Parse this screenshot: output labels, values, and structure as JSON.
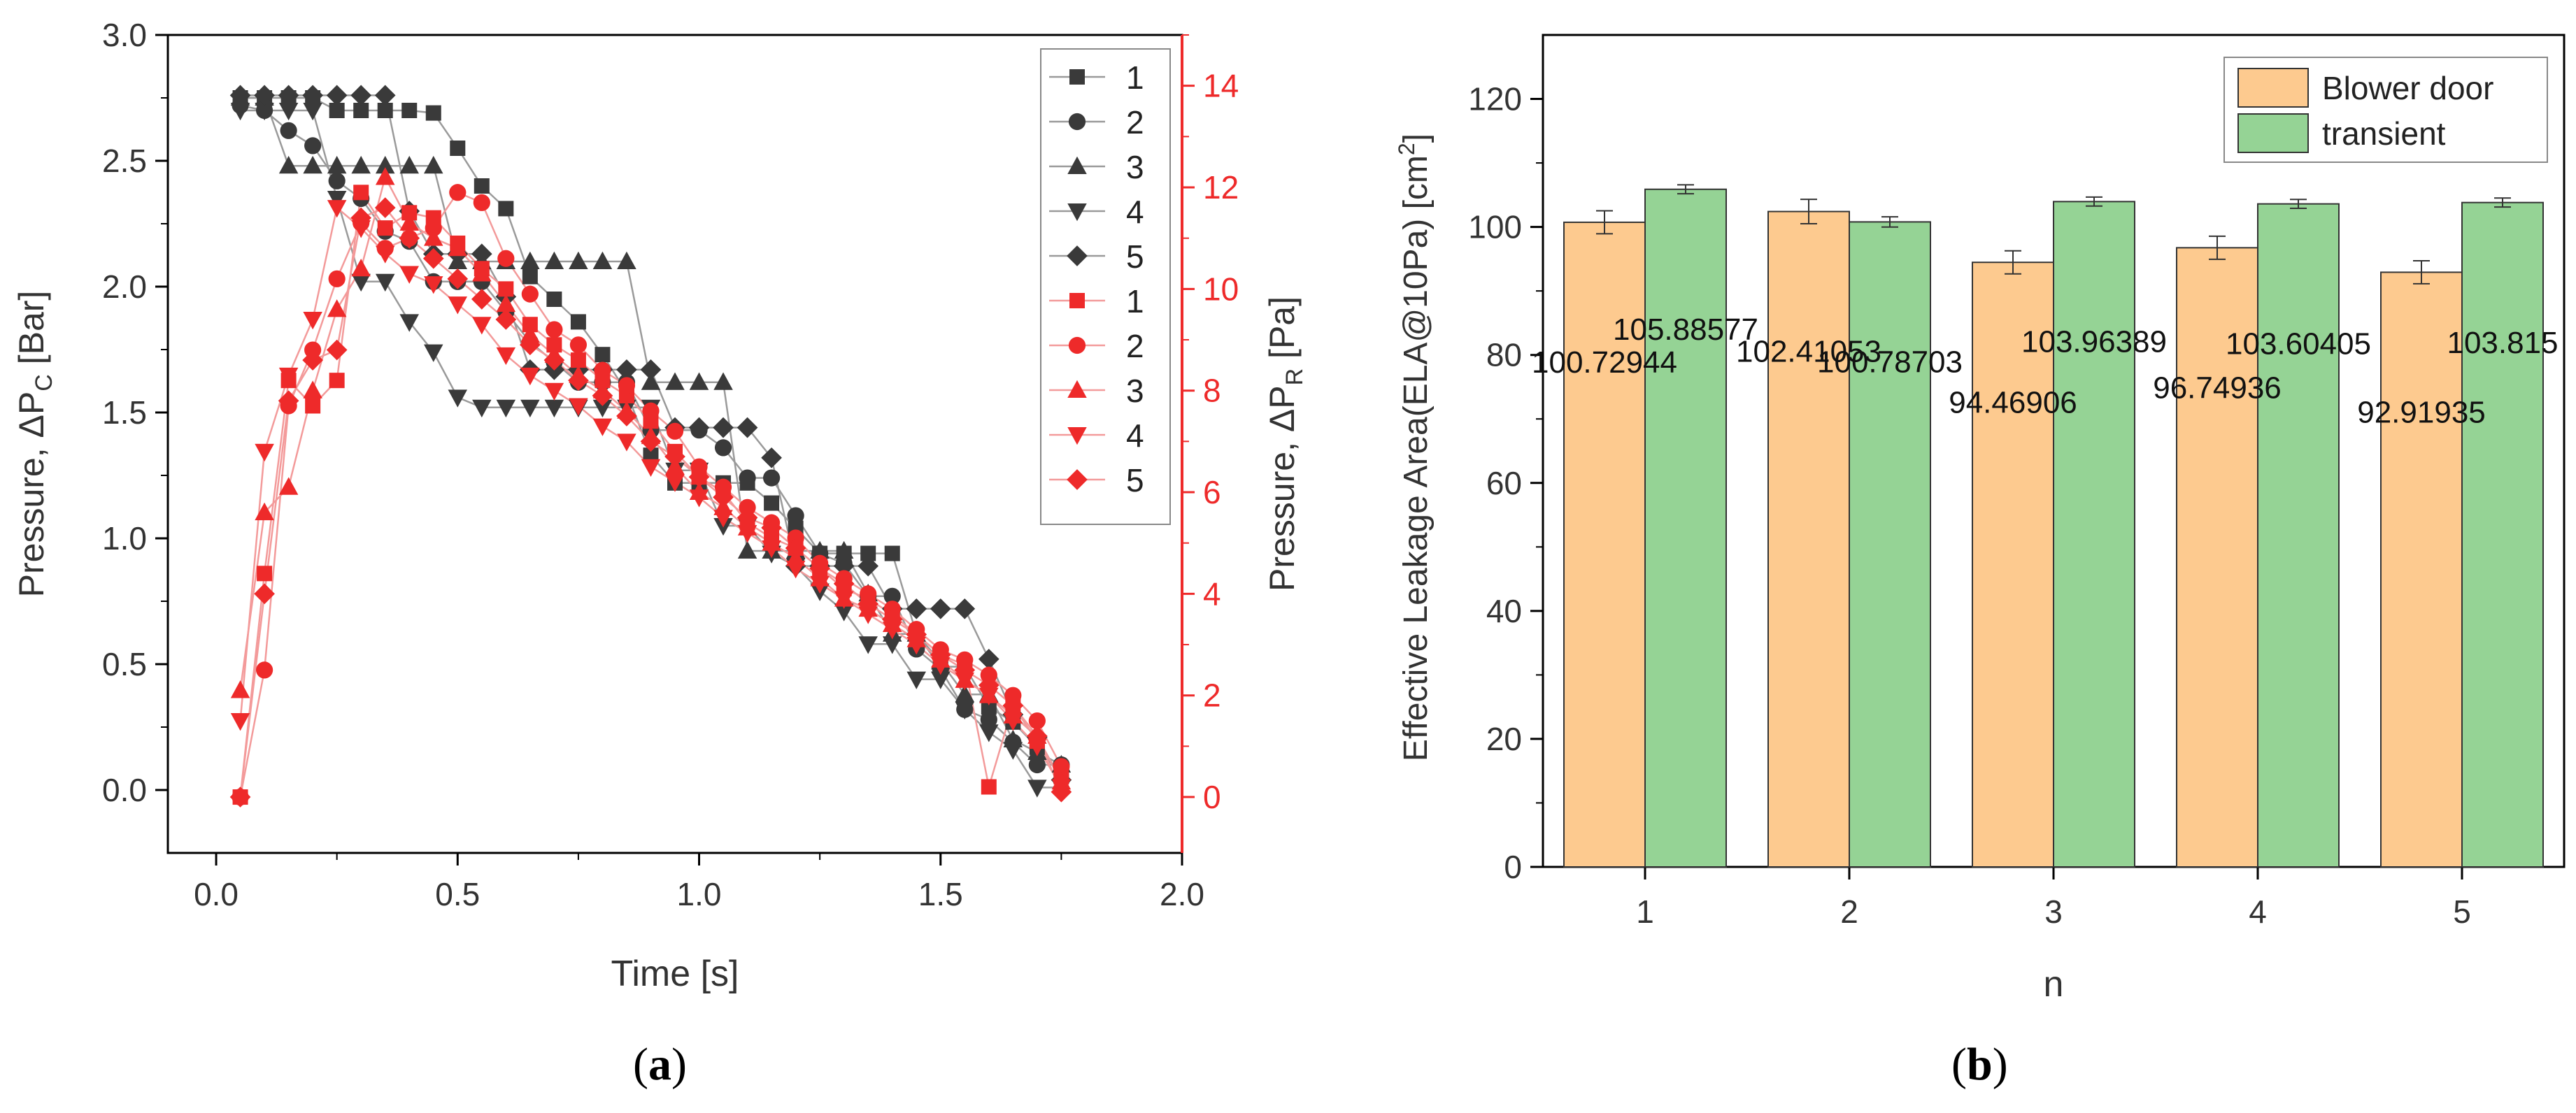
{
  "figure": {
    "panel_a_label": "a",
    "panel_b_label": "b"
  },
  "colors": {
    "black_series": "#3a3a3a",
    "red_series": "#ee2a2a",
    "blower": "#fdca8f",
    "transient": "#95d395",
    "axis": "#000000",
    "line_black": "#9a9a9a",
    "line_red": "#f39a9a"
  },
  "chart_data": [
    {
      "type": "scatter",
      "title": "",
      "xlabel": "Time [s]",
      "ylabel_left": "Pressure, ΔP",
      "ylabel_left_sub": "C",
      "ylabel_left_unit": " [Bar]",
      "ylabel_right": "Pressure, ΔP",
      "ylabel_right_sub": "R",
      "ylabel_right_unit": " [Pa]",
      "xlim": [
        -0.1,
        2.0
      ],
      "ylim_left": [
        -0.25,
        3.0
      ],
      "ylim_right": [
        -1.1,
        15.0
      ],
      "xticks": [
        "0.0",
        "0.5",
        "1.0",
        "1.5",
        "2.0"
      ],
      "yticks_left": [
        "0.0",
        "0.5",
        "1.0",
        "1.5",
        "2.0",
        "2.5",
        "3.0"
      ],
      "yticks_right": [
        "0",
        "2",
        "4",
        "6",
        "8",
        "10",
        "12",
        "14"
      ],
      "legend": [
        "1",
        "2",
        "3",
        "4",
        "5",
        "1",
        "2",
        "3",
        "4",
        "5"
      ],
      "legend_position": "top-right",
      "x": [
        0.05,
        0.1,
        0.15,
        0.2,
        0.25,
        0.3,
        0.35,
        0.4,
        0.45,
        0.5,
        0.55,
        0.6,
        0.65,
        0.7,
        0.75,
        0.8,
        0.85,
        0.9,
        0.95,
        1.0,
        1.05,
        1.1,
        1.15,
        1.2,
        1.25,
        1.3,
        1.35,
        1.4,
        1.45,
        1.5,
        1.55,
        1.6,
        1.65,
        1.7,
        1.75
      ],
      "series_left": [
        {
          "name": "1",
          "marker": "square",
          "values": [
            2.75,
            2.75,
            2.75,
            2.75,
            2.7,
            2.7,
            2.7,
            2.7,
            2.69,
            2.55,
            2.4,
            2.31,
            2.04,
            1.95,
            1.86,
            1.73,
            1.58,
            1.33,
            1.22,
            1.22,
            1.22,
            1.22,
            1.14,
            1.04,
            0.94,
            0.94,
            0.94,
            0.94,
            0.62,
            0.49,
            0.49,
            0.33,
            0.27,
            0.17,
            0.06
          ]
        },
        {
          "name": "2",
          "marker": "circle",
          "values": [
            2.72,
            2.7,
            2.62,
            2.56,
            2.42,
            2.35,
            2.22,
            2.18,
            2.02,
            2.02,
            2.02,
            1.9,
            1.78,
            1.7,
            1.62,
            1.62,
            1.62,
            1.43,
            1.43,
            1.43,
            1.36,
            1.24,
            1.24,
            1.09,
            0.94,
            0.9,
            0.77,
            0.77,
            0.56,
            0.48,
            0.32,
            0.28,
            0.19,
            0.1,
            0.1
          ]
        },
        {
          "name": "3",
          "marker": "triangle-up",
          "values": [
            2.75,
            2.75,
            2.48,
            2.48,
            2.48,
            2.48,
            2.48,
            2.48,
            2.48,
            2.1,
            2.1,
            2.1,
            2.1,
            2.1,
            2.1,
            2.1,
            2.1,
            1.62,
            1.62,
            1.62,
            1.62,
            0.95,
            0.95,
            0.95,
            0.95,
            0.95,
            0.78,
            0.62,
            0.62,
            0.51,
            0.38,
            0.38,
            0.2,
            0.15,
            0.1
          ]
        },
        {
          "name": "4",
          "marker": "triangle-down",
          "values": [
            2.7,
            2.7,
            2.7,
            2.7,
            2.35,
            2.02,
            2.02,
            1.86,
            1.74,
            1.56,
            1.52,
            1.52,
            1.52,
            1.52,
            1.52,
            1.52,
            1.52,
            1.52,
            1.27,
            1.27,
            1.05,
            1.05,
            0.94,
            0.89,
            0.79,
            0.71,
            0.58,
            0.58,
            0.44,
            0.44,
            0.32,
            0.23,
            0.16,
            0.01,
            0.01
          ]
        },
        {
          "name": "5",
          "marker": "diamond",
          "values": [
            2.76,
            2.76,
            2.76,
            2.76,
            2.76,
            2.76,
            2.76,
            2.3,
            2.13,
            2.13,
            2.13,
            1.96,
            1.67,
            1.67,
            1.67,
            1.67,
            1.67,
            1.67,
            1.44,
            1.44,
            1.44,
            1.44,
            1.32,
            0.89,
            0.89,
            0.89,
            0.89,
            0.72,
            0.72,
            0.72,
            0.72,
            0.52,
            0.3,
            0.21,
            0.04
          ]
        }
      ],
      "series_right": [
        {
          "name": "1",
          "marker": "square",
          "values": [
            0.0,
            4.4,
            8.2,
            7.7,
            8.2,
            11.9,
            11.2,
            11.5,
            11.4,
            10.9,
            10.4,
            10.0,
            9.3,
            8.9,
            8.6,
            8.2,
            7.9,
            7.4,
            6.8,
            6.3,
            6.0,
            5.4,
            5.1,
            4.9,
            4.5,
            4.1,
            3.9,
            3.6,
            3.2,
            2.8,
            2.6,
            0.2,
            1.8,
            1.1,
            0.4
          ]
        },
        {
          "name": "2",
          "marker": "circle",
          "values": [
            0.0,
            2.5,
            7.7,
            8.8,
            10.2,
            11.3,
            10.8,
            11.0,
            11.2,
            11.9,
            11.7,
            10.6,
            9.9,
            9.2,
            8.9,
            8.4,
            8.1,
            7.6,
            7.2,
            6.5,
            6.1,
            5.7,
            5.4,
            5.1,
            4.6,
            4.3,
            4.0,
            3.7,
            3.3,
            2.9,
            2.7,
            2.4,
            2.0,
            1.5,
            0.6
          ]
        },
        {
          "name": "3",
          "marker": "triangle-up",
          "values": [
            2.1,
            5.6,
            6.1,
            8.0,
            9.6,
            10.4,
            12.2,
            11.3,
            11.0,
            10.8,
            10.3,
            9.7,
            9.1,
            8.7,
            8.3,
            8.0,
            7.6,
            7.1,
            6.5,
            6.0,
            5.7,
            5.3,
            5.0,
            4.7,
            4.3,
            3.9,
            3.7,
            3.4,
            3.1,
            2.7,
            2.3,
            2.0,
            1.6,
            1.2,
            0.3
          ]
        },
        {
          "name": "4",
          "marker": "triangle-down",
          "values": [
            1.5,
            6.8,
            8.3,
            9.4,
            11.6,
            11.2,
            10.7,
            10.3,
            10.1,
            9.7,
            9.3,
            8.7,
            8.3,
            8.0,
            7.7,
            7.3,
            7.0,
            6.5,
            6.2,
            5.9,
            5.5,
            5.2,
            4.9,
            4.5,
            4.2,
            3.9,
            3.6,
            3.3,
            3.0,
            2.6,
            2.3,
            2.0,
            1.5,
            1.0,
            0.2
          ]
        },
        {
          "name": "5",
          "marker": "diamond",
          "values": [
            0.0,
            4.0,
            7.8,
            8.6,
            8.8,
            11.4,
            11.6,
            11.0,
            10.6,
            10.2,
            9.8,
            9.4,
            8.9,
            8.6,
            8.2,
            7.9,
            7.5,
            7.0,
            6.7,
            6.3,
            5.9,
            5.5,
            5.3,
            4.9,
            4.5,
            4.2,
            3.8,
            3.5,
            3.2,
            2.8,
            2.5,
            2.2,
            1.8,
            1.2,
            0.1
          ]
        }
      ]
    },
    {
      "type": "bar",
      "title": "",
      "xlabel": "n",
      "ylabel": "Effective Leakage Area(ELA@10Pa) [cm",
      "ylabel_sup": "2",
      "ylabel_close": "]",
      "ylim": [
        0,
        130
      ],
      "yticks": [
        "0",
        "20",
        "40",
        "60",
        "80",
        "100",
        "120"
      ],
      "categories": [
        "1",
        "2",
        "3",
        "4",
        "5"
      ],
      "legend_position": "top-right",
      "series": [
        {
          "name": "Blower door",
          "values": [
            100.72944,
            102.41053,
            94.46906,
            96.74936,
            92.91935
          ],
          "errors": [
            1.8,
            1.9,
            1.8,
            1.8,
            1.8
          ],
          "labels": [
            "100.72944",
            "102.41053",
            "94.46906",
            "96.74936",
            "92.91935"
          ]
        },
        {
          "name": "transient",
          "values": [
            105.88577,
            100.78703,
            103.96389,
            103.60405,
            103.815
          ],
          "errors": [
            0.7,
            0.8,
            0.7,
            0.7,
            0.7
          ],
          "labels": [
            "105.88577",
            "100.78703",
            "103.96389",
            "103.60405",
            "103.815"
          ]
        }
      ]
    }
  ]
}
